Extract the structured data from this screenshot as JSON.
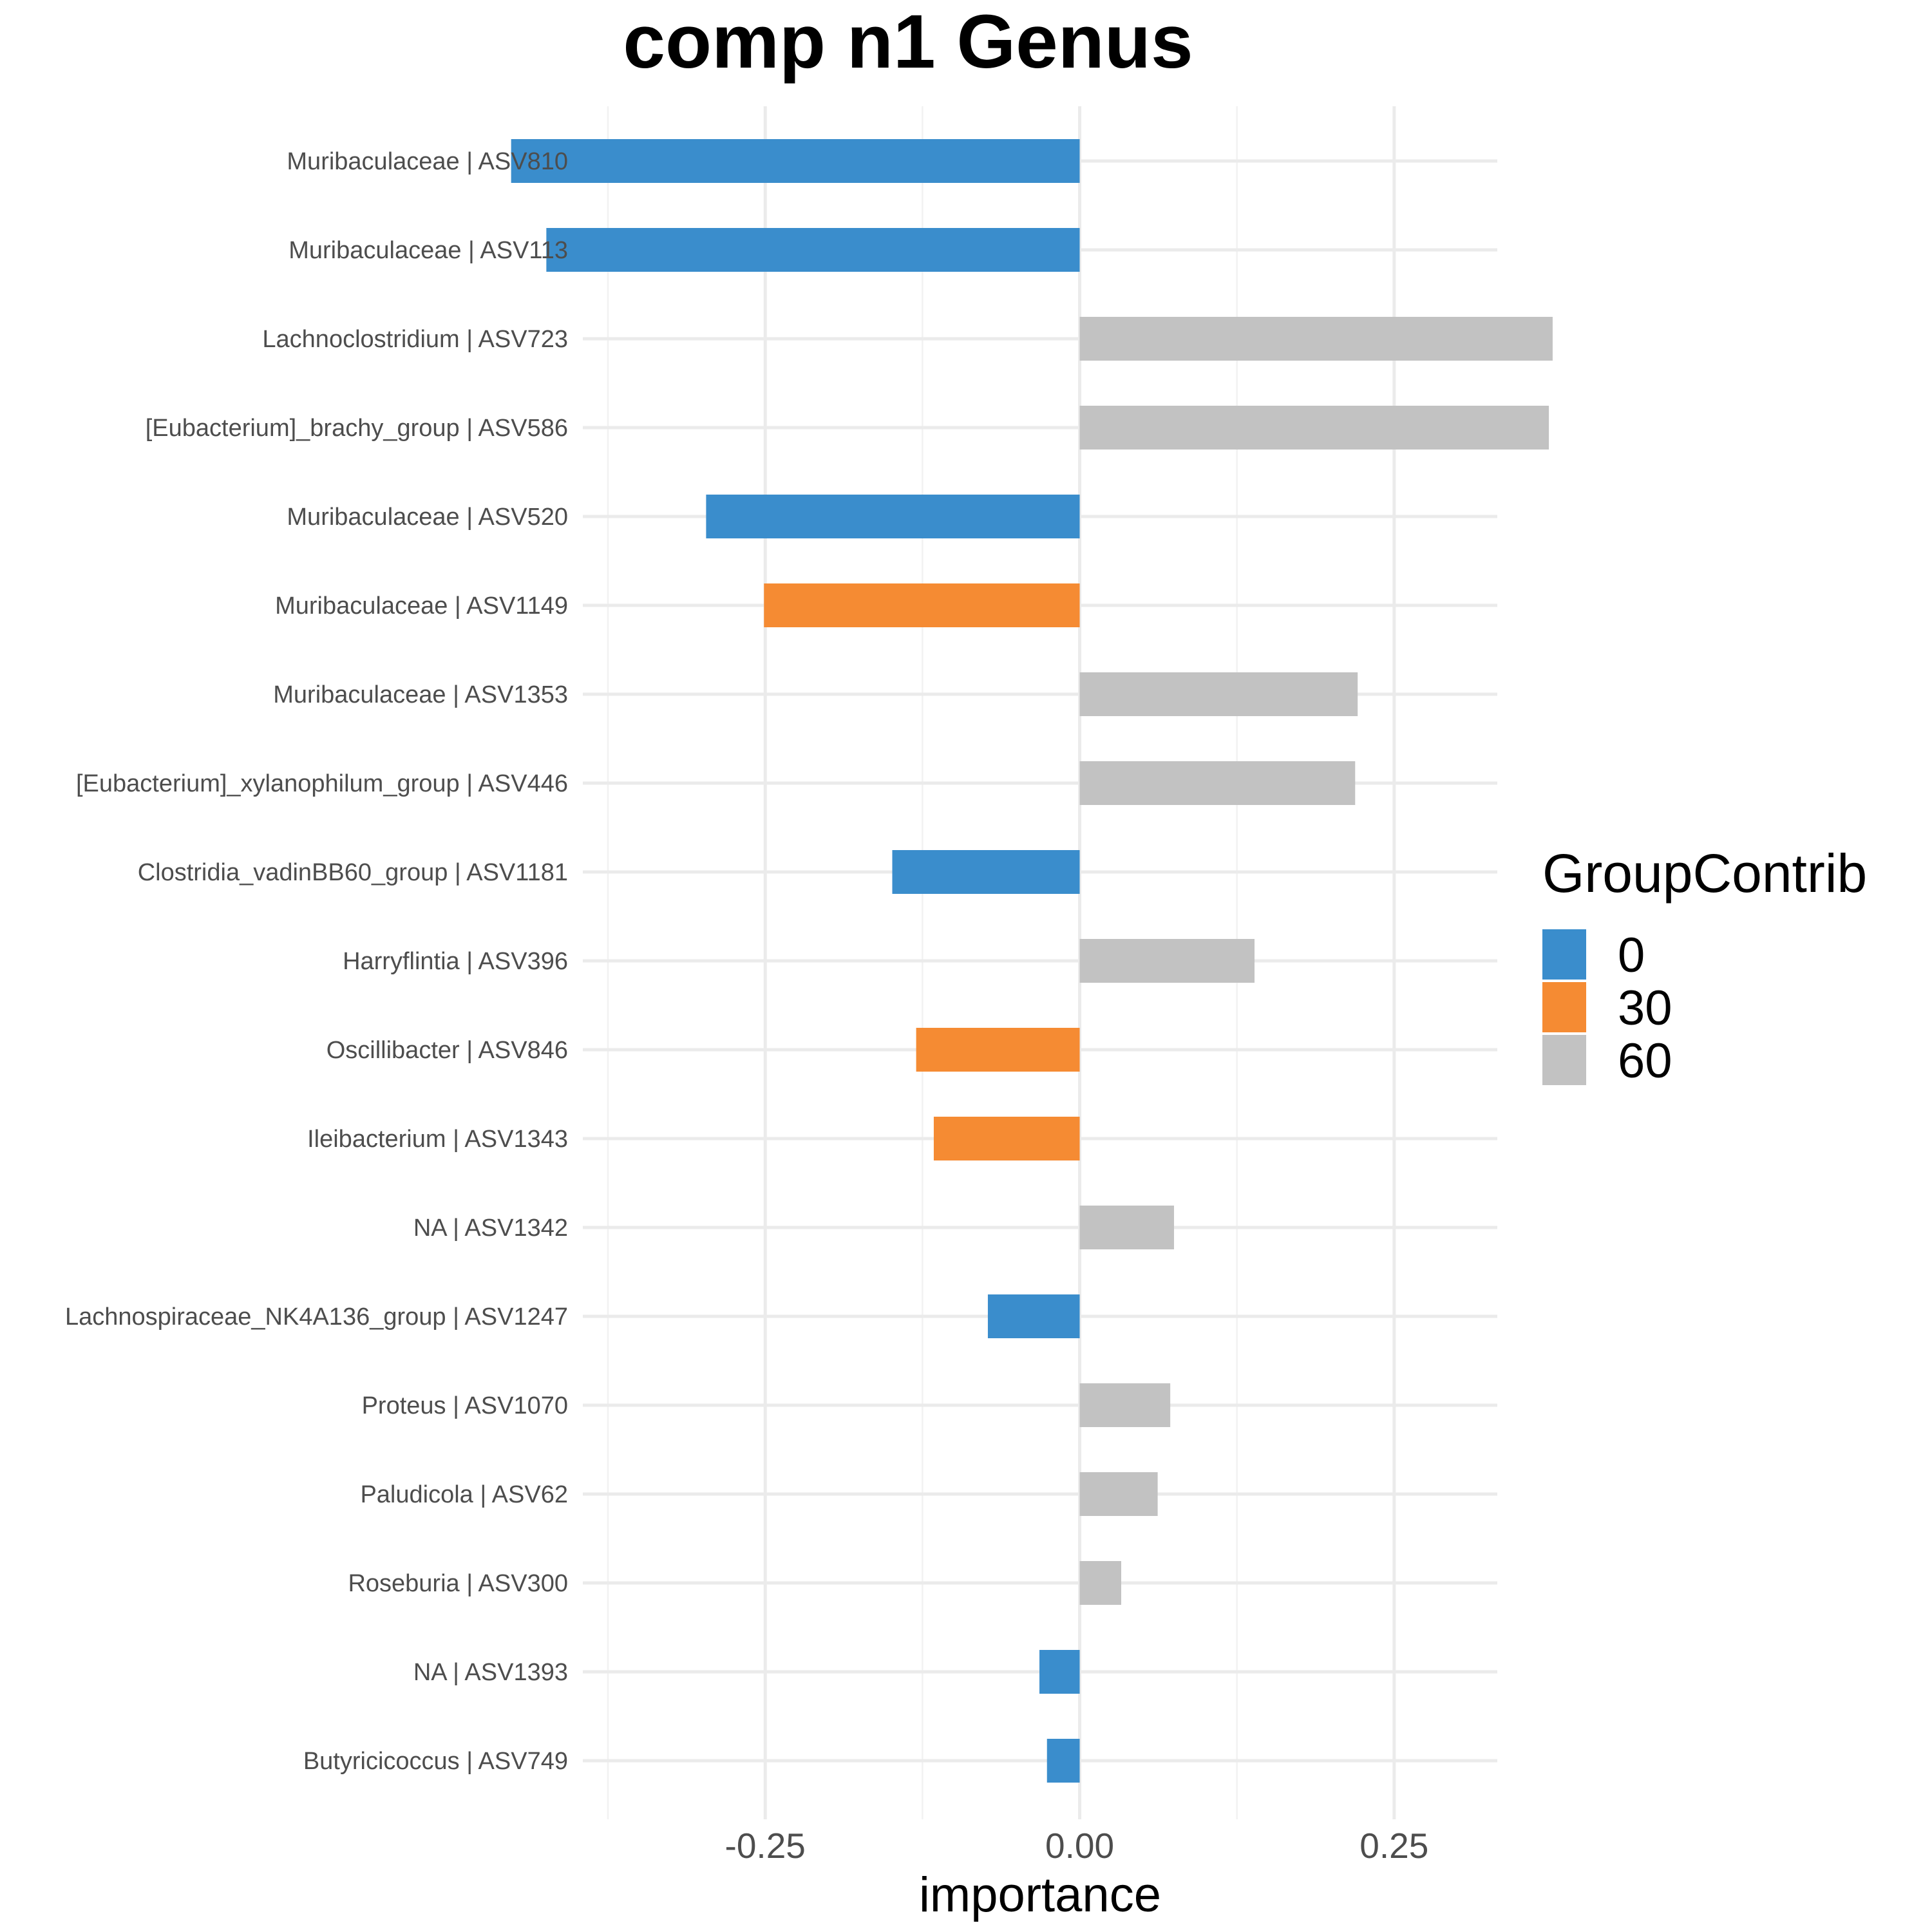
{
  "chart_data": {
    "type": "bar",
    "orientation": "horizontal",
    "title": "comp n1 Genus",
    "xlabel": "importance",
    "ylabel": "",
    "xlim": [
      -0.395,
      0.332
    ],
    "xticks": [
      -0.25,
      0.0,
      0.25
    ],
    "xtick_labels": [
      "-0.25",
      "0.00",
      "0.25"
    ],
    "grid": true,
    "legend": {
      "title": "GroupContrib",
      "placement": "right",
      "entries": [
        {
          "label": "0",
          "color": "#3a8dcc"
        },
        {
          "label": "30",
          "color": "#f58b33"
        },
        {
          "label": "60",
          "color": "#c2c2c2"
        }
      ]
    },
    "categories": [
      "Muribaculaceae | ASV810",
      "Muribaculaceae | ASV113",
      "Lachnoclostridium | ASV723",
      "[Eubacterium]_brachy_group | ASV586",
      "Muribaculaceae | ASV520",
      "Muribaculaceae | ASV1149",
      "Muribaculaceae | ASV1353",
      "[Eubacterium]_xylanophilum_group | ASV446",
      "Clostridia_vadinBB60_group | ASV1181",
      "Harryflintia | ASV396",
      "Oscillibacter | ASV846",
      "Ileibacterium | ASV1343",
      "NA | ASV1342",
      "Lachnospiraceae_NK4A136_group | ASV1247",
      "Proteus | ASV1070",
      "Paludicola | ASV62",
      "Roseburia | ASV300",
      "NA | ASV1393",
      "Butyricicoccus | ASV749"
    ],
    "values": [
      -0.452,
      -0.424,
      0.376,
      0.373,
      -0.297,
      -0.251,
      0.221,
      0.219,
      -0.149,
      0.139,
      -0.13,
      -0.116,
      0.075,
      -0.073,
      0.072,
      0.062,
      0.033,
      -0.032,
      -0.026
    ],
    "groups": [
      "0",
      "0",
      "60",
      "60",
      "0",
      "30",
      "60",
      "60",
      "0",
      "60",
      "30",
      "30",
      "60",
      "0",
      "60",
      "60",
      "60",
      "0",
      "0"
    ]
  }
}
